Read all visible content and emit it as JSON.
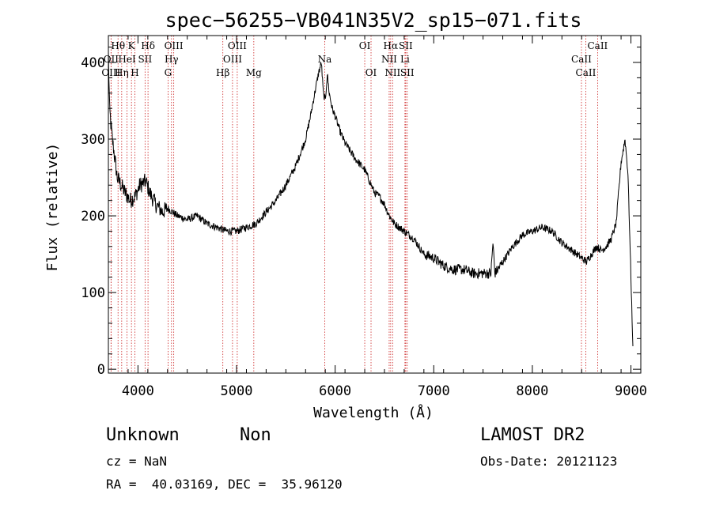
{
  "chart_data": {
    "type": "line",
    "title": "spec−56255−VB041N35V2_sp15−071.fits",
    "xlabel": "Wavelength (Å)",
    "ylabel": "Flux (relative)",
    "xlim": [
      3700,
      9100
    ],
    "ylim": [
      -5,
      435
    ],
    "xticks": [
      4000,
      5000,
      6000,
      7000,
      8000,
      9000
    ],
    "yticks": [
      0,
      100,
      200,
      300,
      400
    ],
    "line_color": "#000000",
    "marker_color": "#cc2222",
    "series": [
      {
        "x": [
          3700,
          3712,
          3725,
          3740,
          3760,
          3790,
          3830,
          3870,
          3920,
          3970,
          4020,
          4080,
          4120,
          4180,
          4250,
          4300,
          4350,
          4400,
          4500,
          4600,
          4700,
          4800,
          4900,
          5000,
          5100,
          5200,
          5300,
          5400,
          5500,
          5600,
          5700,
          5750,
          5800,
          5830,
          5860,
          5880,
          5900,
          5920,
          5940,
          5970,
          6000,
          6050,
          6100,
          6200,
          6300,
          6400,
          6450,
          6500,
          6550,
          6600,
          6650,
          6700,
          6750,
          6800,
          6900,
          7000,
          7100,
          7200,
          7300,
          7400,
          7500,
          7580,
          7600,
          7620,
          7650,
          7700,
          7800,
          7900,
          8000,
          8100,
          8200,
          8300,
          8400,
          8500,
          8550,
          8600,
          8650,
          8700,
          8750,
          8800,
          8850,
          8900,
          8940,
          8970,
          9000,
          9020
        ],
        "y": [
          410,
          340,
          320,
          300,
          280,
          250,
          240,
          230,
          220,
          225,
          240,
          245,
          230,
          215,
          205,
          210,
          205,
          200,
          195,
          200,
          190,
          185,
          180,
          180,
          185,
          190,
          205,
          220,
          240,
          265,
          300,
          330,
          365,
          385,
          400,
          360,
          350,
          385,
          360,
          340,
          330,
          310,
          295,
          275,
          260,
          230,
          225,
          215,
          200,
          190,
          185,
          180,
          175,
          170,
          150,
          145,
          135,
          130,
          130,
          125,
          125,
          125,
          165,
          125,
          130,
          140,
          160,
          175,
          180,
          185,
          180,
          165,
          155,
          145,
          140,
          150,
          160,
          155,
          160,
          170,
          190,
          270,
          300,
          255,
          120,
          30
        ]
      }
    ],
    "line_marks": [
      {
        "label": "Hθ",
        "x": 3798,
        "row": 0
      },
      {
        "label": "OII",
        "x": 3727,
        "row": 1
      },
      {
        "label": "OIII",
        "x": 3727,
        "row": 2
      },
      {
        "label": "Hη",
        "x": 3835,
        "row": 2
      },
      {
        "label": "HeI",
        "x": 3889,
        "row": 1
      },
      {
        "label": "K",
        "x": 3934,
        "row": 0
      },
      {
        "label": "SII",
        "x": 4072,
        "row": 1
      },
      {
        "label": "H",
        "x": 3969,
        "row": 2
      },
      {
        "label": "Hδ",
        "x": 4102,
        "row": 0
      },
      {
        "label": "OIII",
        "x": 4363,
        "row": 0
      },
      {
        "label": "Hγ",
        "x": 4340,
        "row": 1
      },
      {
        "label": "G",
        "x": 4305,
        "row": 2
      },
      {
        "label": "Hβ",
        "x": 4861,
        "row": 2
      },
      {
        "label": "OIII",
        "x": 5007,
        "row": 0
      },
      {
        "label": "OIII",
        "x": 4959,
        "row": 1
      },
      {
        "label": "Mg",
        "x": 5175,
        "row": 2
      },
      {
        "label": "Na",
        "x": 5894,
        "row": 1
      },
      {
        "label": "OI",
        "x": 6300,
        "row": 0
      },
      {
        "label": "OI",
        "x": 6364,
        "row": 2
      },
      {
        "label": "Hα",
        "x": 6563,
        "row": 0
      },
      {
        "label": "NII",
        "x": 6548,
        "row": 1
      },
      {
        "label": "NII",
        "x": 6583,
        "row": 2
      },
      {
        "label": "SII",
        "x": 6716,
        "row": 0
      },
      {
        "label": "Li",
        "x": 6708,
        "row": 1
      },
      {
        "label": "SII",
        "x": 6731,
        "row": 2
      },
      {
        "label": "CaII",
        "x": 8662,
        "row": 0
      },
      {
        "label": "CaII",
        "x": 8498,
        "row": 1
      },
      {
        "label": "CaII",
        "x": 8542,
        "row": 2
      }
    ]
  },
  "info": {
    "object_class": "Unknown",
    "subclass": "Non",
    "cz": "cz = NaN",
    "coords": "RA =  40.03169, DEC =  35.96120",
    "survey": "LAMOST DR2",
    "obs_date": "Obs-Date: 20121123"
  }
}
